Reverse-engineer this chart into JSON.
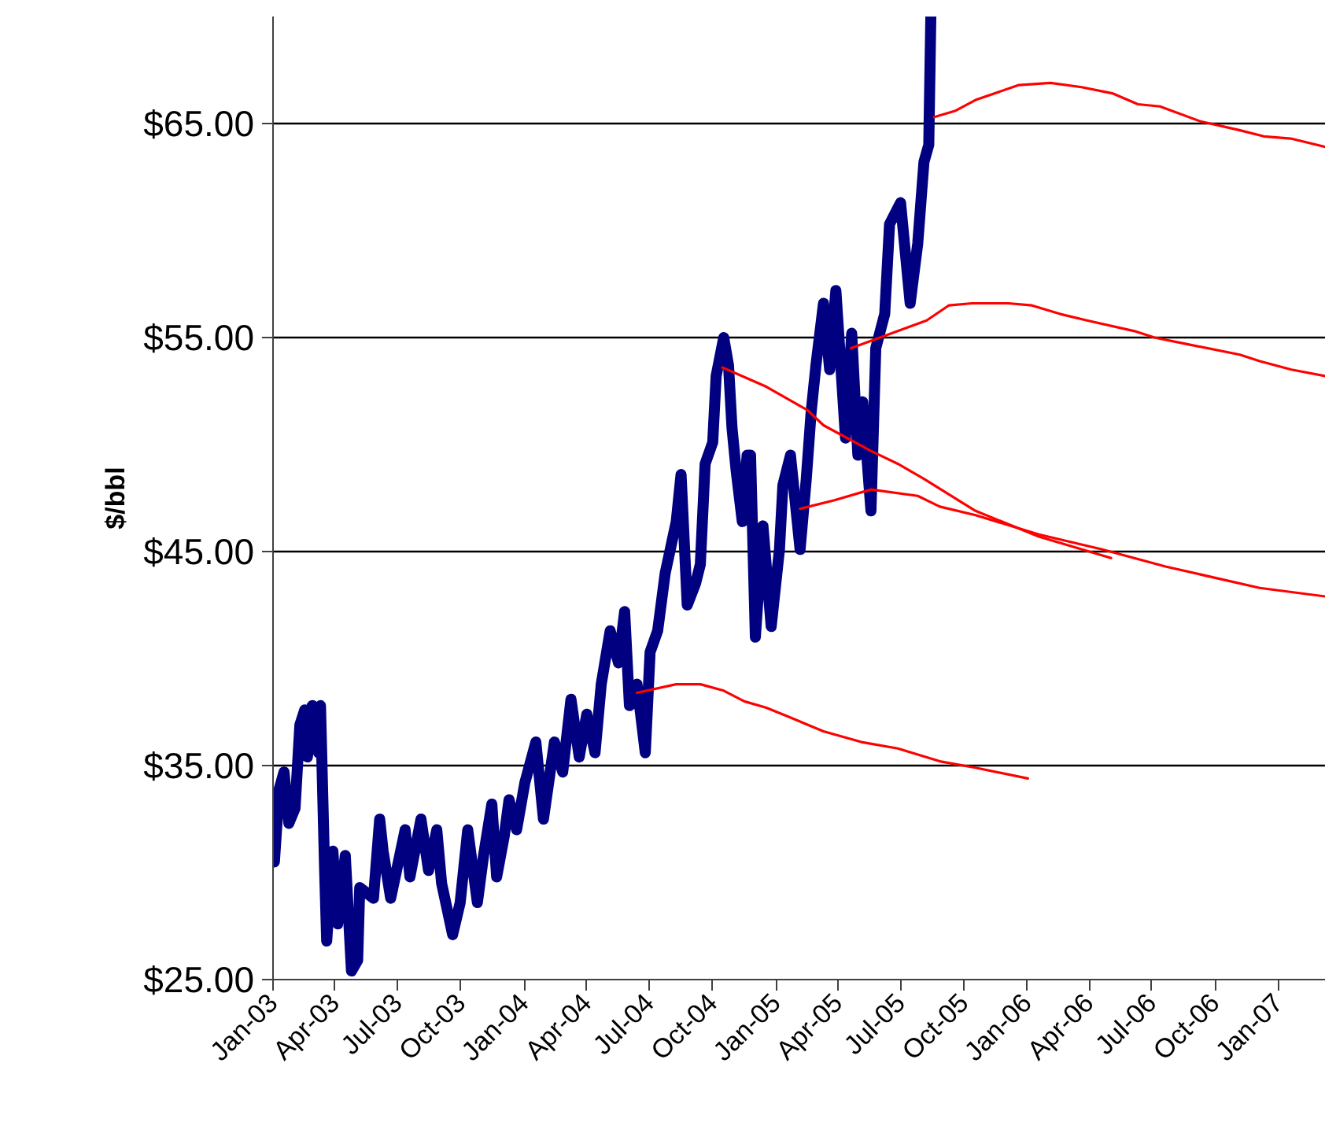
{
  "chart_data": {
    "type": "line",
    "ylabel": "$/bbl",
    "xlim": [
      "2003-01-01",
      "2007-03-11"
    ],
    "ylim": [
      25,
      70
    ],
    "xticks": [
      {
        "value": "2003-01-01",
        "label": "Jan-03"
      },
      {
        "value": "2003-04-01",
        "label": "Apr-03"
      },
      {
        "value": "2003-07-01",
        "label": "Jul-03"
      },
      {
        "value": "2003-10-01",
        "label": "Oct-03"
      },
      {
        "value": "2004-01-01",
        "label": "Jan-04"
      },
      {
        "value": "2004-04-01",
        "label": "Apr-04"
      },
      {
        "value": "2004-07-01",
        "label": "Jul-04"
      },
      {
        "value": "2004-10-01",
        "label": "Oct-04"
      },
      {
        "value": "2005-01-01",
        "label": "Jan-05"
      },
      {
        "value": "2005-04-01",
        "label": "Apr-05"
      },
      {
        "value": "2005-07-01",
        "label": "Jul-05"
      },
      {
        "value": "2005-10-01",
        "label": "Oct-05"
      },
      {
        "value": "2006-01-01",
        "label": "Jan-06"
      },
      {
        "value": "2006-04-01",
        "label": "Apr-06"
      },
      {
        "value": "2006-07-01",
        "label": "Jul-06"
      },
      {
        "value": "2006-10-01",
        "label": "Oct-06"
      },
      {
        "value": "2007-01-01",
        "label": "Jan-07"
      }
    ],
    "yticks": [
      {
        "value": 25,
        "label": "$25.00"
      },
      {
        "value": 35,
        "label": "$35.00"
      },
      {
        "value": 45,
        "label": "$45.00"
      },
      {
        "value": 55,
        "label": "$55.00"
      },
      {
        "value": 65,
        "label": "$65.00"
      }
    ],
    "grid": "y",
    "marker": "none",
    "line_style": "solid",
    "series": [
      {
        "color": "#000080",
        "x": [
          "2003-01-01",
          "2003-01-03",
          "2003-01-10",
          "2003-01-17",
          "2003-01-24",
          "2003-02-02",
          "2003-02-09",
          "2003-02-16",
          "2003-02-20",
          "2003-02-27",
          "2003-03-08",
          "2003-03-11",
          "2003-03-17",
          "2003-03-20",
          "2003-03-29",
          "2003-04-05",
          "2003-04-16",
          "2003-04-25",
          "2003-05-04",
          "2003-05-07",
          "2003-05-27",
          "2003-06-05",
          "2003-06-10",
          "2003-06-21",
          "2003-07-12",
          "2003-07-19",
          "2003-08-04",
          "2003-08-15",
          "2003-08-27",
          "2003-09-03",
          "2003-09-19",
          "2003-09-30",
          "2003-10-11",
          "2003-10-25",
          "2003-11-03",
          "2003-11-15",
          "2003-11-22",
          "2003-12-03",
          "2003-12-10",
          "2003-12-21",
          "2004-01-02",
          "2004-01-18",
          "2004-01-29",
          "2004-02-14",
          "2004-02-26",
          "2004-03-09",
          "2004-03-21",
          "2004-04-01",
          "2004-04-13",
          "2004-04-22",
          "2004-05-05",
          "2004-05-17",
          "2004-05-26",
          "2004-06-02",
          "2004-06-13",
          "2004-06-25",
          "2004-07-02",
          "2004-07-13",
          "2004-07-24",
          "2004-08-09",
          "2004-08-16",
          "2004-08-25",
          "2004-09-06",
          "2004-09-13",
          "2004-09-20",
          "2004-10-01",
          "2004-10-06",
          "2004-10-17",
          "2004-10-24",
          "2004-10-29",
          "2004-11-04",
          "2004-11-13",
          "2004-11-20",
          "2004-11-25",
          "2004-12-02",
          "2004-12-13",
          "2004-12-25",
          "2005-01-06",
          "2005-01-11",
          "2005-01-22",
          "2005-02-05",
          "2005-02-14",
          "2005-02-21",
          "2005-02-28",
          "2005-03-11",
          "2005-03-20",
          "2005-03-29",
          "2005-04-12",
          "2005-04-21",
          "2005-04-30",
          "2005-05-07",
          "2005-05-19",
          "2005-05-26",
          "2005-06-08",
          "2005-06-15",
          "2005-07-01",
          "2005-07-15",
          "2005-07-26",
          "2005-08-04",
          "2005-08-11",
          "2005-08-14"
        ],
        "values": [
          33.2,
          30.5,
          33.9,
          34.7,
          32.3,
          33.0,
          36.9,
          37.6,
          35.4,
          37.8,
          35.6,
          37.8,
          30.1,
          26.8,
          31.0,
          27.6,
          30.8,
          25.4,
          25.9,
          29.3,
          28.8,
          32.5,
          31.0,
          28.8,
          32.0,
          29.8,
          32.5,
          30.1,
          32.0,
          29.5,
          27.1,
          28.6,
          32.0,
          28.6,
          30.8,
          33.2,
          29.8,
          31.7,
          33.4,
          32.0,
          34.2,
          36.1,
          32.5,
          36.1,
          34.7,
          38.1,
          35.4,
          37.4,
          35.6,
          38.8,
          41.3,
          39.8,
          42.2,
          37.8,
          38.8,
          35.6,
          40.3,
          41.3,
          44.0,
          46.4,
          48.6,
          42.5,
          43.5,
          44.4,
          49.1,
          50.1,
          53.2,
          55.0,
          53.7,
          50.8,
          48.8,
          46.4,
          49.5,
          49.5,
          41.0,
          46.2,
          41.5,
          45.1,
          48.1,
          49.5,
          45.1,
          48.4,
          51.5,
          53.7,
          56.6,
          53.5,
          57.2,
          50.3,
          55.2,
          49.5,
          52.0,
          46.9,
          54.5,
          56.1,
          60.3,
          61.3,
          56.6,
          59.4,
          63.2,
          64.0,
          70.0
        ]
      },
      {
        "color": "#ff0000",
        "x": [
          "2004-06-13",
          "2004-08-09",
          "2004-09-13",
          "2004-10-17",
          "2004-11-16",
          "2004-12-18",
          "2005-01-18",
          "2005-03-11",
          "2005-05-05",
          "2005-06-27",
          "2005-08-27",
          "2005-10-18",
          "2006-01-02"
        ],
        "values": [
          38.4,
          38.8,
          38.8,
          38.5,
          38.0,
          37.7,
          37.3,
          36.6,
          36.1,
          35.8,
          35.2,
          34.9,
          34.4
        ]
      },
      {
        "color": "#ff0000",
        "x": [
          "2004-10-15",
          "2004-12-18",
          "2005-02-16",
          "2005-03-11",
          "2005-05-19",
          "2005-06-27",
          "2005-08-04",
          "2005-10-18",
          "2006-01-18",
          "2006-05-03"
        ],
        "values": [
          53.6,
          52.7,
          51.6,
          50.9,
          49.7,
          49.1,
          48.4,
          46.9,
          45.7,
          44.7
        ]
      },
      {
        "color": "#ff0000",
        "x": [
          "2005-02-05",
          "2005-03-27",
          "2005-05-19",
          "2005-07-26",
          "2005-08-27",
          "2005-10-18",
          "2006-01-18",
          "2006-04-20",
          "2006-07-21",
          "2006-12-05",
          "2007-03-11"
        ],
        "values": [
          47.0,
          47.4,
          47.9,
          47.6,
          47.1,
          46.7,
          45.8,
          45.1,
          44.3,
          43.3,
          42.9
        ]
      },
      {
        "color": "#ff0000",
        "x": [
          "2005-04-20",
          "2005-08-08",
          "2005-09-09",
          "2005-10-13",
          "2005-12-05",
          "2006-01-08",
          "2006-02-18",
          "2006-03-29",
          "2006-06-06",
          "2006-07-05",
          "2006-08-20",
          "2006-11-06",
          "2006-12-05",
          "2007-01-20",
          "2007-03-11"
        ],
        "values": [
          54.5,
          55.8,
          56.5,
          56.6,
          56.6,
          56.5,
          56.1,
          55.8,
          55.3,
          55.0,
          54.7,
          54.2,
          53.9,
          53.5,
          53.2
        ]
      },
      {
        "color": "#ff0000",
        "x": [
          "2005-08-19",
          "2005-09-19",
          "2005-10-18",
          "2005-12-20",
          "2006-02-04",
          "2006-03-21",
          "2006-05-06",
          "2006-06-11",
          "2006-07-13",
          "2006-09-10",
          "2006-11-04",
          "2006-12-11",
          "2007-01-19",
          "2007-03-11"
        ],
        "values": [
          65.3,
          65.6,
          66.1,
          66.8,
          66.9,
          66.7,
          66.4,
          65.9,
          65.8,
          65.1,
          64.7,
          64.4,
          64.3,
          63.9
        ]
      }
    ]
  }
}
